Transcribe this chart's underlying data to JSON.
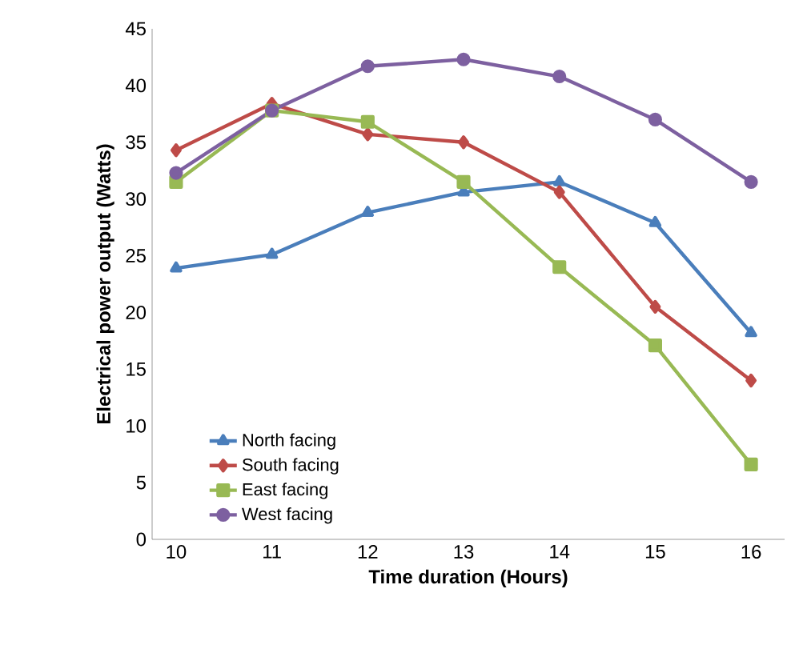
{
  "chart_data": {
    "type": "line",
    "xlabel": "Time duration (Hours)",
    "ylabel": "Electrical  power output (Watts)",
    "x": [
      10,
      11,
      12,
      13,
      14,
      15,
      16
    ],
    "series": [
      {
        "name": "North facing",
        "color": "#4a7ebb",
        "marker": "triangle",
        "values": [
          23.9,
          25.1,
          28.8,
          30.6,
          31.5,
          27.9,
          18.2
        ]
      },
      {
        "name": "South facing",
        "color": "#be4b48",
        "marker": "diamond",
        "values": [
          34.3,
          38.4,
          35.7,
          35.0,
          30.6,
          20.5,
          14.0
        ]
      },
      {
        "name": "East facing",
        "color": "#98b954",
        "marker": "square",
        "values": [
          31.5,
          37.8,
          36.8,
          31.5,
          24.0,
          17.1,
          6.6
        ]
      },
      {
        "name": "West facing",
        "color": "#7d60a0",
        "marker": "circle",
        "values": [
          32.3,
          37.8,
          41.7,
          42.3,
          40.8,
          37.0,
          31.5
        ]
      }
    ],
    "xlim": [
      9.75,
      16.35
    ],
    "xticks": [
      10,
      11,
      12,
      13,
      14,
      15,
      16
    ],
    "ylim": [
      0,
      45
    ],
    "yticks": [
      0,
      5,
      10,
      15,
      20,
      25,
      30,
      35,
      40,
      45
    ],
    "grid": false,
    "legend": "bottom left",
    "line_style": "solid"
  }
}
